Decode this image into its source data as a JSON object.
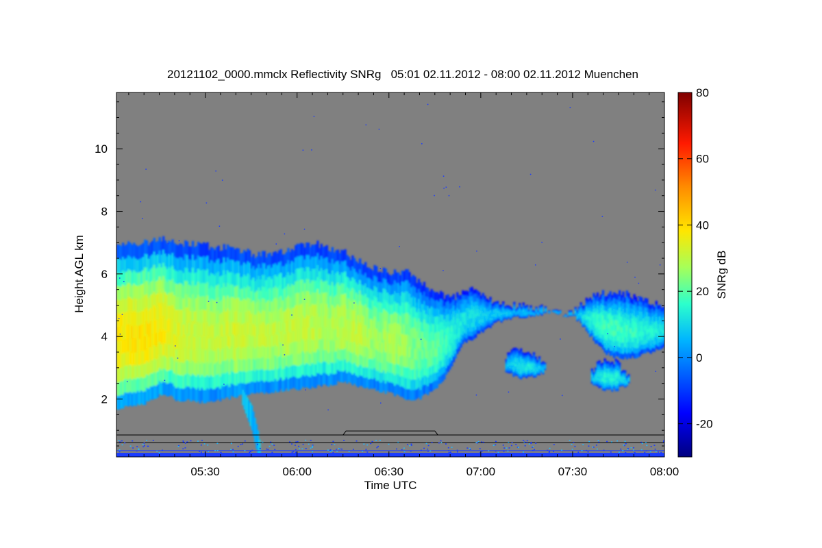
{
  "chart_data": {
    "type": "heatmap",
    "title": "20121102_0000.mmclx Reflectivity SNRg   05:01 02.11.2012 - 08:00 02.11.2012 Muenchen",
    "xlabel": "Time UTC",
    "ylabel": "Height AGL km",
    "colorbar_label": "SNRg dB",
    "x_ticks": [
      "05:30",
      "06:00",
      "06:30",
      "07:00",
      "07:30",
      "08:00"
    ],
    "x_tick_minutes": [
      30,
      60,
      90,
      120,
      150,
      180
    ],
    "xlim_minutes": [
      1,
      180
    ],
    "y_ticks": [
      "2",
      "4",
      "6",
      "8",
      "10"
    ],
    "y_tick_values": [
      2,
      4,
      6,
      8,
      10
    ],
    "ylim": [
      0.15,
      11.8
    ],
    "colorbar_ticks": [
      "-20",
      "0",
      "20",
      "40",
      "60",
      "80"
    ],
    "colorbar_tick_values": [
      -20,
      0,
      20,
      40,
      60,
      80
    ],
    "clim": [
      -30,
      80
    ],
    "background_color": "#808080",
    "cloud_layers": [
      {
        "name": "main",
        "minutes": [
          1,
          10,
          16,
          20,
          30,
          40,
          47,
          55,
          60,
          65,
          70,
          75,
          80,
          85,
          90,
          95,
          100,
          105,
          110,
          114,
          118,
          122,
          126,
          130,
          140,
          143,
          150
        ],
        "top_km": [
          6.9,
          7.0,
          7.15,
          7.0,
          6.9,
          6.8,
          6.6,
          6.7,
          6.9,
          7.0,
          6.8,
          6.7,
          6.4,
          6.2,
          6.0,
          6.1,
          5.7,
          5.4,
          5.2,
          5.4,
          5.5,
          5.2,
          5.0,
          5.0,
          4.9,
          4.8,
          4.7
        ],
        "base_km": [
          1.7,
          1.85,
          2.2,
          2.0,
          1.9,
          2.1,
          2.2,
          2.3,
          2.35,
          2.4,
          2.45,
          2.6,
          2.4,
          2.3,
          2.2,
          2.0,
          2.05,
          2.3,
          3.0,
          3.8,
          4.0,
          4.3,
          4.5,
          4.6,
          4.7,
          4.8,
          4.6
        ],
        "core_db": [
          38,
          38,
          37,
          33,
          30,
          32,
          30,
          30,
          30,
          30,
          28,
          30,
          30,
          26,
          28,
          26,
          22,
          20,
          16,
          12,
          10,
          8,
          8,
          6,
          6,
          6,
          6
        ]
      },
      {
        "name": "east upper",
        "minutes": [
          150,
          155,
          160,
          165,
          170,
          175,
          180
        ],
        "top_km": [
          4.8,
          5.2,
          5.4,
          5.4,
          5.3,
          5.1,
          5.0
        ],
        "base_km": [
          4.7,
          4.1,
          3.5,
          3.3,
          3.35,
          3.5,
          3.7
        ],
        "core_db": [
          6,
          14,
          18,
          18,
          16,
          14,
          12
        ]
      },
      {
        "name": "mid patch 1",
        "minutes": [
          128,
          132,
          136,
          139,
          141
        ],
        "top_km": [
          3.4,
          3.6,
          3.5,
          3.3,
          3.2
        ],
        "base_km": [
          2.9,
          2.7,
          2.7,
          2.8,
          2.9
        ],
        "core_db": [
          6,
          12,
          12,
          8,
          6
        ]
      },
      {
        "name": "mid patch 2",
        "minutes": [
          156,
          160,
          164,
          168
        ],
        "top_km": [
          2.9,
          3.3,
          3.2,
          2.7
        ],
        "base_km": [
          2.5,
          2.3,
          2.3,
          2.5
        ],
        "core_db": [
          8,
          14,
          14,
          8
        ]
      }
    ],
    "fallstreak": {
      "minutes": [
        42,
        45,
        47,
        48
      ],
      "top_km": [
        2.3,
        1.8,
        1.0,
        0.4
      ],
      "base_km": [
        1.8,
        1.0,
        0.2,
        0.15
      ]
    },
    "clutter_lines": [
      {
        "km": 0.85,
        "from_min": 1,
        "to_min": 180,
        "color": "#000000"
      },
      {
        "km": 0.6,
        "from_min": 1,
        "to_min": 180,
        "color": "#000000"
      },
      {
        "km": 0.35,
        "from_min": 1,
        "to_min": 180,
        "color": "#1a3bff"
      },
      {
        "km": 0.25,
        "from_min": 1,
        "to_min": 180,
        "color": "#1a3bff"
      }
    ]
  }
}
